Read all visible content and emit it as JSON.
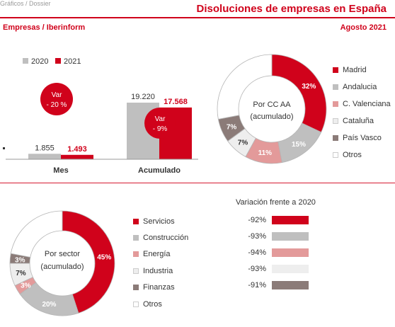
{
  "header": {
    "top_partial_text": "Gráficos / Dossier",
    "title": "Disoluciones de empresas en España",
    "source": "Empresas / Iberinform",
    "date": "Agosto 2021"
  },
  "colors": {
    "red": "#d0021b",
    "gray": "#bfbfbf",
    "pink": "#e39a9a",
    "lightgray": "#eeeeee",
    "brown": "#8b7b78",
    "white": "#ffffff",
    "accent_text": "#d0021b"
  },
  "chart_data": [
    {
      "type": "bar",
      "categories": [
        "Mes",
        "Acumulado"
      ],
      "series": [
        {
          "name": "2020",
          "values": [
            1855,
            19220
          ],
          "labels": [
            "1.855",
            "19.220"
          ],
          "color": "#bfbfbf"
        },
        {
          "name": "2021",
          "values": [
            1493,
            17568
          ],
          "labels": [
            "1.493",
            "17.568"
          ],
          "color": "#d0021b"
        }
      ],
      "annotations": [
        {
          "category": "Mes",
          "line1": "Var",
          "line2": "- 20 %"
        },
        {
          "category": "Acumulado",
          "line1": "Var",
          "line2": "- 9%"
        }
      ]
    },
    {
      "type": "pie",
      "center_line1": "Por CC AA",
      "center_line2": "(acumulado)",
      "slices": [
        {
          "name": "Madrid",
          "value": 32,
          "label": "32%",
          "color": "#d0021b"
        },
        {
          "name": "Andalucia",
          "value": 15,
          "label": "15%",
          "color": "#bfbfbf"
        },
        {
          "name": "C. Valenciana",
          "value": 11,
          "label": "11%",
          "color": "#e39a9a"
        },
        {
          "name": "Cataluña",
          "value": 7,
          "label": "7%",
          "color": "#eeeeee"
        },
        {
          "name": "País Vasco",
          "value": 7,
          "label": "7%",
          "color": "#8b7b78"
        },
        {
          "name": "Otros",
          "value": 28,
          "label": "",
          "color": "#ffffff"
        }
      ]
    },
    {
      "type": "pie",
      "center_line1": "Por sector",
      "center_line2": "(acumulado)",
      "slices": [
        {
          "name": "Servicios",
          "value": 45,
          "label": "45%",
          "color": "#d0021b"
        },
        {
          "name": "Construcción",
          "value": 20,
          "label": "20%",
          "color": "#bfbfbf"
        },
        {
          "name": "Energía",
          "value": 3,
          "label": "3%",
          "color": "#e39a9a"
        },
        {
          "name": "Industria",
          "value": 7,
          "label": "7%",
          "color": "#eeeeee"
        },
        {
          "name": "Finanzas",
          "value": 3,
          "label": "3%",
          "color": "#8b7b78"
        },
        {
          "name": "Otros",
          "value": 22,
          "label": "",
          "color": "#ffffff"
        }
      ]
    },
    {
      "type": "table",
      "title": "Variación frente a 2020",
      "rows": [
        {
          "sector": "Servicios",
          "value": "-92%",
          "color": "#d0021b"
        },
        {
          "sector": "Construcción",
          "value": "-93%",
          "color": "#bfbfbf"
        },
        {
          "sector": "Energía",
          "value": "-94%",
          "color": "#e39a9a"
        },
        {
          "sector": "Industria",
          "value": "-93%",
          "color": "#eeeeee"
        },
        {
          "sector": "Finanzas",
          "value": "-91%",
          "color": "#8b7b78"
        }
      ]
    }
  ]
}
